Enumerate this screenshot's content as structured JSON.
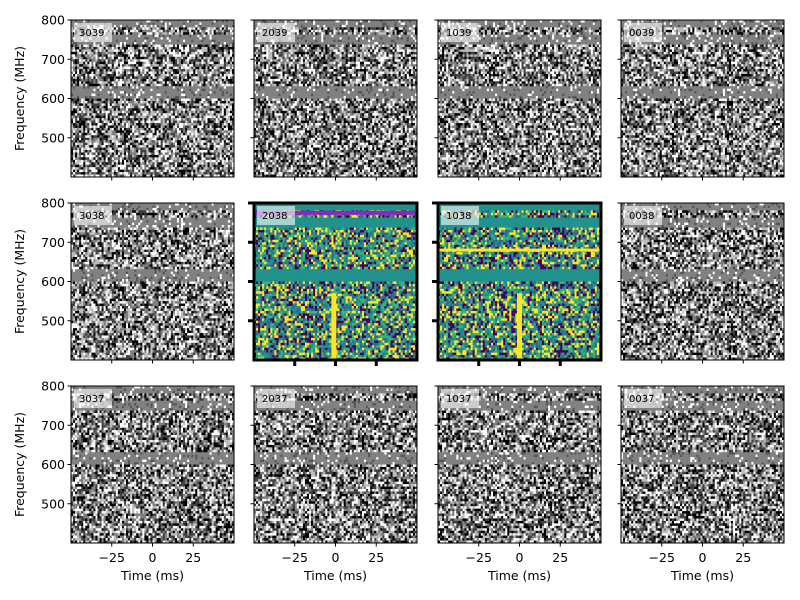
{
  "chart_data": {
    "type": "heatmap",
    "description_grid": "3 rows x 4 columns of dynamic-spectrum panels",
    "xlabel": "Time (ms)",
    "ylabel": "Frequency (MHz)",
    "x_ticks": [
      -25,
      0,
      25
    ],
    "x_tick_labels": [
      "−25",
      "0",
      "25"
    ],
    "xlim": [
      -50,
      50
    ],
    "y_ticks": [
      500,
      600,
      700,
      800
    ],
    "y_tick_labels": [
      "500",
      "600",
      "700",
      "800"
    ],
    "ylim": [
      400,
      800
    ],
    "colormaps": {
      "background": "gray",
      "highlight": "viridis"
    },
    "rows": [
      {
        "panels": [
          {
            "beam": "3039",
            "highlight": false
          },
          {
            "beam": "2039",
            "highlight": false
          },
          {
            "beam": "1039",
            "highlight": false
          },
          {
            "beam": "0039",
            "highlight": false
          }
        ]
      },
      {
        "panels": [
          {
            "beam": "3038",
            "highlight": false
          },
          {
            "beam": "2038",
            "highlight": true,
            "pulse_time_ms": -1,
            "pulse_freq_range": [
              400,
              570
            ]
          },
          {
            "beam": "1038",
            "highlight": true,
            "pulse_time_ms": 0,
            "pulse_freq_range": [
              400,
              570
            ]
          },
          {
            "beam": "0038",
            "highlight": false
          }
        ]
      },
      {
        "panels": [
          {
            "beam": "3037",
            "highlight": false
          },
          {
            "beam": "2037",
            "highlight": false
          },
          {
            "beam": "1037",
            "highlight": false
          },
          {
            "beam": "0037",
            "highlight": false
          }
        ]
      }
    ],
    "masked_bands_mhz": [
      [
        600,
        630
      ],
      [
        740,
        760
      ],
      [
        780,
        800
      ]
    ]
  }
}
